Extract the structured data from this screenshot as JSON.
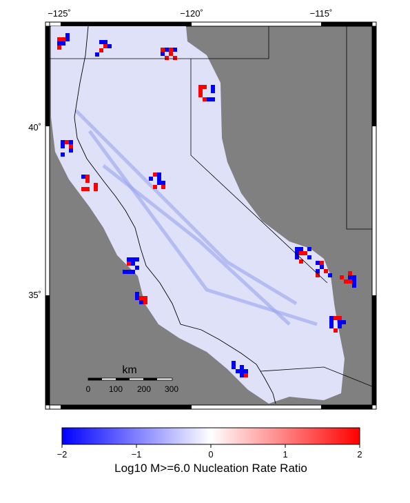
{
  "map": {
    "top_ticks": [
      "−125˚",
      "−120˚",
      "−115˚"
    ],
    "left_ticks": [
      "40˚",
      "35˚"
    ],
    "scale_bar": {
      "unit": "km",
      "labels": [
        "0",
        "100",
        "200",
        "300"
      ]
    }
  },
  "colorbar": {
    "tick_labels": [
      "−2",
      "−1",
      "0",
      "1",
      "2"
    ],
    "title": "Log10 M>=6.0 Nucleation Rate Ratio",
    "colors": {
      "low": "#0000ff",
      "mid": "#ffffff",
      "high": "#ff0000"
    }
  },
  "colors": {
    "background": "#808080",
    "frame": "#000000",
    "land_base": "#dfe1f8"
  }
}
